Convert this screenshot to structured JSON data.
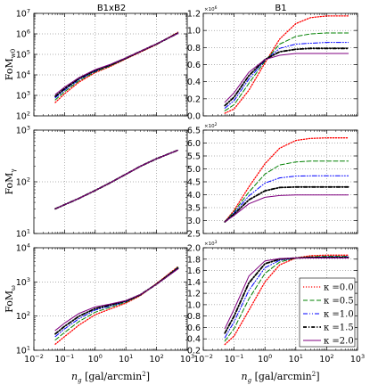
{
  "figure": {
    "col_titles": [
      "B1xB2",
      "B1"
    ],
    "xlabel": {
      "main": "n_g",
      "unit": "[gal/arcmin",
      "sup": "2",
      "close": "]"
    },
    "x_ticks": [
      {
        "base": "10",
        "exp": "−2",
        "v": -2
      },
      {
        "base": "10",
        "exp": "−1",
        "v": -1
      },
      {
        "base": "10",
        "exp": "0",
        "v": 0
      },
      {
        "base": "10",
        "exp": "1",
        "v": 1
      },
      {
        "base": "10",
        "exp": "2",
        "v": 2
      },
      {
        "base": "10",
        "exp": "3",
        "v": 3
      }
    ],
    "row_labels": [
      {
        "main": "FoM",
        "sub": "w0"
      },
      {
        "main": "FoM",
        "sub": "γ"
      },
      {
        "main": "FoM",
        "sub": "ω"
      }
    ],
    "series_styles": [
      {
        "name": "κ =0.0",
        "color": "#ff0000",
        "dash": "1.2,1.8",
        "width": 1.3
      },
      {
        "name": "κ =0.5",
        "color": "#008000",
        "dash": "5,2.5",
        "width": 1
      },
      {
        "name": "κ =1.0",
        "color": "#0000ff",
        "dash": "5,2,1,2,1,2",
        "width": 1
      },
      {
        "name": "κ =1.5",
        "color": "#000000",
        "dash": "4,2,1.2,2",
        "width": 1.8
      },
      {
        "name": "κ =2.0",
        "color": "#800080",
        "dash": "",
        "width": 1
      }
    ],
    "legend": {
      "placement": "lower-right",
      "panel": "row3-right"
    },
    "grid": true
  },
  "chart_data": [
    {
      "type": "line",
      "panel": "row1-left",
      "title": "B1xB2",
      "ylabel": "FoM_w0",
      "yscale": "log",
      "xscale": "log",
      "xlim": [
        0.01,
        1000
      ],
      "ylim": [
        100,
        10000000
      ],
      "y_ticks": [
        {
          "base": "10",
          "exp": "2"
        },
        {
          "base": "10",
          "exp": "3"
        },
        {
          "base": "10",
          "exp": "4"
        },
        {
          "base": "10",
          "exp": "5"
        },
        {
          "base": "10",
          "exp": "6"
        },
        {
          "base": "10",
          "exp": "7"
        }
      ],
      "x": [
        0.05,
        0.1,
        0.3,
        1,
        3,
        10,
        30,
        100,
        500
      ],
      "series": [
        {
          "name": "κ =0.0",
          "values": [
            450,
            1200,
            4500,
            13000,
            25000,
            60000,
            130000,
            300000,
            1200000
          ]
        },
        {
          "name": "κ =0.5",
          "values": [
            600,
            1500,
            5200,
            14000,
            27000,
            62000,
            135000,
            310000,
            1150000
          ]
        },
        {
          "name": "κ =1.0",
          "values": [
            750,
            1800,
            6000,
            15000,
            28500,
            64000,
            138000,
            315000,
            1100000
          ]
        },
        {
          "name": "κ =1.5",
          "values": [
            900,
            2100,
            6800,
            16500,
            30000,
            66000,
            140000,
            320000,
            1080000
          ]
        },
        {
          "name": "κ =2.0",
          "values": [
            1100,
            2500,
            7500,
            18000,
            32000,
            68000,
            142000,
            325000,
            1050000
          ]
        }
      ]
    },
    {
      "type": "line",
      "panel": "row1-right",
      "title": "B1",
      "yscale": "linear",
      "xscale": "log",
      "xlim": [
        0.01,
        1000
      ],
      "ylim": [
        0.0,
        1.2
      ],
      "y_multiplier": {
        "base": "×10",
        "exp": "6"
      },
      "y_ticks": [
        "0.0",
        "0.2",
        "0.4",
        "0.6",
        "0.8",
        "1.0",
        "1.2"
      ],
      "x": [
        0.05,
        0.1,
        0.3,
        1,
        3,
        10,
        30,
        100,
        500
      ],
      "series": [
        {
          "name": "κ =0.0",
          "values": [
            0.03,
            0.08,
            0.3,
            0.62,
            0.9,
            1.08,
            1.15,
            1.17,
            1.17
          ]
        },
        {
          "name": "κ =0.5",
          "values": [
            0.06,
            0.13,
            0.38,
            0.64,
            0.84,
            0.93,
            0.96,
            0.97,
            0.97
          ]
        },
        {
          "name": "κ =1.0",
          "values": [
            0.09,
            0.18,
            0.43,
            0.65,
            0.79,
            0.84,
            0.85,
            0.86,
            0.86
          ]
        },
        {
          "name": "κ =1.5",
          "values": [
            0.12,
            0.22,
            0.47,
            0.66,
            0.75,
            0.78,
            0.79,
            0.79,
            0.79
          ]
        },
        {
          "name": "κ =2.0",
          "values": [
            0.16,
            0.27,
            0.51,
            0.66,
            0.71,
            0.73,
            0.73,
            0.73,
            0.73
          ]
        }
      ]
    },
    {
      "type": "line",
      "panel": "row2-left",
      "ylabel": "FoM_γ",
      "yscale": "log",
      "xscale": "log",
      "xlim": [
        0.01,
        1000
      ],
      "ylim": [
        10,
        1000
      ],
      "y_ticks": [
        {
          "base": "10",
          "exp": "1"
        },
        {
          "base": "10",
          "exp": "2"
        },
        {
          "base": "10",
          "exp": "3"
        }
      ],
      "x": [
        0.05,
        0.1,
        0.3,
        1,
        3,
        10,
        30,
        100,
        500
      ],
      "series": [
        {
          "name": "κ =0.0",
          "values": [
            30,
            36,
            48,
            68,
            95,
            140,
            200,
            280,
            410
          ]
        },
        {
          "name": "κ =0.5",
          "values": [
            30,
            36,
            48,
            68,
            95,
            140,
            200,
            280,
            410
          ]
        },
        {
          "name": "κ =1.0",
          "values": [
            30,
            36,
            48,
            68,
            95,
            140,
            200,
            280,
            410
          ]
        },
        {
          "name": "κ =1.5",
          "values": [
            30,
            36,
            48,
            68,
            95,
            140,
            200,
            280,
            410
          ]
        },
        {
          "name": "κ =2.0",
          "values": [
            30,
            36,
            48,
            68,
            95,
            140,
            200,
            280,
            410
          ]
        }
      ]
    },
    {
      "type": "line",
      "panel": "row2-right",
      "yscale": "linear",
      "xscale": "log",
      "xlim": [
        0.01,
        1000
      ],
      "ylim": [
        2.5,
        6.5
      ],
      "y_multiplier": {
        "base": "×10",
        "exp": "2"
      },
      "y_ticks": [
        "2.5",
        "3.0",
        "3.5",
        "4.0",
        "4.5",
        "5.0",
        "5.5",
        "6.0",
        "6.5"
      ],
      "x": [
        0.05,
        0.1,
        0.3,
        1,
        3,
        10,
        30,
        100,
        500
      ],
      "series": [
        {
          "name": "κ =0.0",
          "values": [
            2.95,
            3.4,
            4.3,
            5.2,
            5.8,
            6.1,
            6.18,
            6.2,
            6.2
          ]
        },
        {
          "name": "κ =0.5",
          "values": [
            2.95,
            3.35,
            4.1,
            4.8,
            5.15,
            5.27,
            5.3,
            5.3,
            5.3
          ]
        },
        {
          "name": "κ =1.0",
          "values": [
            2.95,
            3.3,
            3.95,
            4.45,
            4.65,
            4.72,
            4.73,
            4.73,
            4.73
          ]
        },
        {
          "name": "κ =1.5",
          "values": [
            2.95,
            3.25,
            3.8,
            4.15,
            4.28,
            4.3,
            4.3,
            4.3,
            4.3
          ]
        },
        {
          "name": "κ =2.0",
          "values": [
            2.95,
            3.2,
            3.65,
            3.9,
            3.97,
            3.99,
            3.99,
            3.99,
            3.99
          ]
        }
      ]
    },
    {
      "type": "line",
      "panel": "row3-left",
      "ylabel": "FoM_ω",
      "yscale": "log",
      "xscale": "log",
      "xlim": [
        0.01,
        1000
      ],
      "ylim": [
        10,
        10000
      ],
      "y_ticks": [
        {
          "base": "10",
          "exp": "1"
        },
        {
          "base": "10",
          "exp": "2"
        },
        {
          "base": "10",
          "exp": "3"
        },
        {
          "base": "10",
          "exp": "4"
        }
      ],
      "x": [
        0.05,
        0.1,
        0.3,
        1,
        3,
        10,
        30,
        100,
        500
      ],
      "series": [
        {
          "name": "κ =0.0",
          "values": [
            15,
            25,
            55,
            110,
            160,
            240,
            400,
            900,
            2800
          ]
        },
        {
          "name": "κ =0.5",
          "values": [
            20,
            33,
            70,
            130,
            180,
            255,
            410,
            880,
            2700
          ]
        },
        {
          "name": "κ =1.0",
          "values": [
            25,
            42,
            85,
            150,
            195,
            265,
            420,
            870,
            2600
          ]
        },
        {
          "name": "κ =1.5",
          "values": [
            30,
            50,
            100,
            165,
            210,
            275,
            425,
            860,
            2500
          ]
        },
        {
          "name": "κ =2.0",
          "values": [
            38,
            62,
            120,
            185,
            225,
            285,
            430,
            850,
            2400
          ]
        }
      ]
    },
    {
      "type": "line",
      "panel": "row3-right",
      "yscale": "linear",
      "xscale": "log",
      "xlim": [
        0.01,
        1000
      ],
      "ylim": [
        0.2,
        2.0
      ],
      "y_multiplier": {
        "base": "×10",
        "exp": "3"
      },
      "y_ticks": [
        "0.2",
        "0.4",
        "0.6",
        "0.8",
        "1.0",
        "1.2",
        "1.4",
        "1.6",
        "1.8",
        "2.0"
      ],
      "x": [
        0.05,
        0.1,
        0.3,
        1,
        3,
        10,
        30,
        100,
        500
      ],
      "series": [
        {
          "name": "κ =0.0",
          "values": [
            0.3,
            0.45,
            0.9,
            1.4,
            1.7,
            1.82,
            1.86,
            1.87,
            1.87
          ]
        },
        {
          "name": "κ =0.5",
          "values": [
            0.36,
            0.58,
            1.1,
            1.55,
            1.75,
            1.82,
            1.84,
            1.85,
            1.85
          ]
        },
        {
          "name": "κ =1.0",
          "values": [
            0.42,
            0.7,
            1.25,
            1.65,
            1.78,
            1.82,
            1.83,
            1.84,
            1.84
          ]
        },
        {
          "name": "κ =1.5",
          "values": [
            0.5,
            0.8,
            1.38,
            1.72,
            1.8,
            1.82,
            1.83,
            1.83,
            1.83
          ]
        },
        {
          "name": "κ =2.0",
          "values": [
            0.58,
            0.92,
            1.5,
            1.77,
            1.81,
            1.82,
            1.82,
            1.82,
            1.82
          ]
        }
      ]
    }
  ]
}
